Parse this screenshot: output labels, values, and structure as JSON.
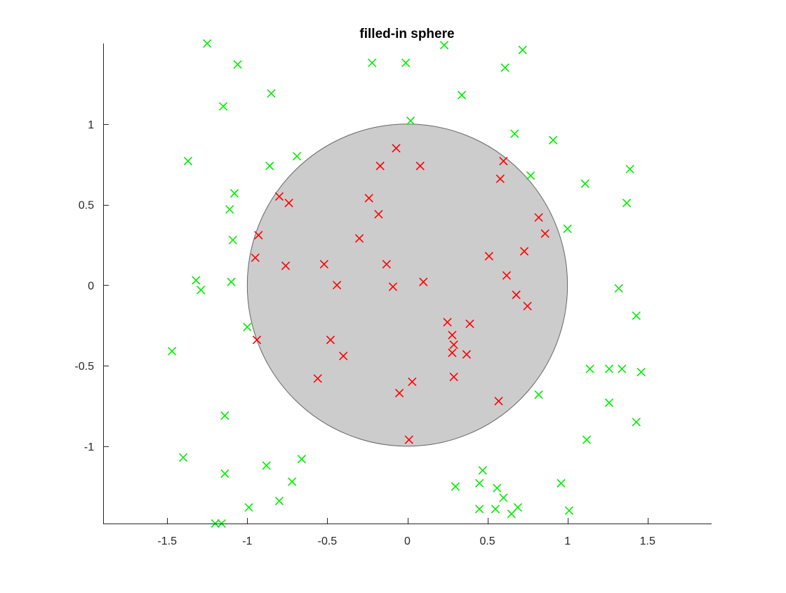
{
  "chart_data": {
    "type": "scatter",
    "title": "filled-in sphere",
    "xlabel": "",
    "ylabel": "",
    "xlim": [
      -1.9,
      1.9
    ],
    "ylim": [
      -1.48,
      1.5
    ],
    "xticks": [
      -1.5,
      -1,
      -0.5,
      0,
      0.5,
      1,
      1.5
    ],
    "xtick_labels": [
      "-1.5",
      "-1",
      "-0.5",
      "0",
      "0.5",
      "1",
      "1.5"
    ],
    "yticks": [
      -1,
      -0.5,
      0,
      0.5,
      1
    ],
    "ytick_labels": [
      "-1",
      "-0.5",
      "0",
      "0.5",
      "1"
    ],
    "grid": false,
    "box": false,
    "circle": {
      "center": [
        0,
        0
      ],
      "radius": 1,
      "fill": "#cccccc",
      "edge": "#666666"
    },
    "series": [
      {
        "marker": "x",
        "color": "#ff0000",
        "points": [
          [
            -0.07,
            0.85
          ],
          [
            0.08,
            0.74
          ],
          [
            -0.17,
            0.74
          ],
          [
            0.6,
            0.77
          ],
          [
            0.58,
            0.66
          ],
          [
            -0.24,
            0.54
          ],
          [
            -0.18,
            0.44
          ],
          [
            -0.8,
            0.55
          ],
          [
            -0.74,
            0.51
          ],
          [
            -0.93,
            0.31
          ],
          [
            -0.3,
            0.29
          ],
          [
            0.82,
            0.42
          ],
          [
            0.86,
            0.32
          ],
          [
            0.51,
            0.18
          ],
          [
            0.73,
            0.21
          ],
          [
            -0.95,
            0.17
          ],
          [
            -0.76,
            0.12
          ],
          [
            -0.52,
            0.13
          ],
          [
            -0.13,
            0.13
          ],
          [
            0.62,
            0.06
          ],
          [
            -0.44,
            0.0
          ],
          [
            -0.09,
            -0.01
          ],
          [
            0.1,
            0.02
          ],
          [
            0.68,
            -0.06
          ],
          [
            0.75,
            -0.13
          ],
          [
            0.25,
            -0.23
          ],
          [
            0.39,
            -0.24
          ],
          [
            0.28,
            -0.31
          ],
          [
            0.29,
            -0.37
          ],
          [
            -0.48,
            -0.34
          ],
          [
            -0.94,
            -0.34
          ],
          [
            0.28,
            -0.42
          ],
          [
            0.37,
            -0.43
          ],
          [
            -0.4,
            -0.44
          ],
          [
            0.29,
            -0.57
          ],
          [
            -0.56,
            -0.58
          ],
          [
            0.03,
            -0.6
          ],
          [
            -0.05,
            -0.67
          ],
          [
            0.57,
            -0.72
          ],
          [
            0.01,
            -0.96
          ]
        ]
      },
      {
        "marker": "x",
        "color": "#00ee00",
        "points": [
          [
            -1.25,
            1.5
          ],
          [
            0.23,
            1.49
          ],
          [
            0.72,
            1.46
          ],
          [
            -1.06,
            1.37
          ],
          [
            -0.22,
            1.38
          ],
          [
            -0.01,
            1.38
          ],
          [
            0.61,
            1.35
          ],
          [
            -0.85,
            1.19
          ],
          [
            0.34,
            1.18
          ],
          [
            -1.15,
            1.11
          ],
          [
            0.02,
            1.02
          ],
          [
            0.67,
            0.94
          ],
          [
            0.91,
            0.9
          ],
          [
            -1.37,
            0.77
          ],
          [
            -0.69,
            0.8
          ],
          [
            -0.86,
            0.74
          ],
          [
            1.39,
            0.72
          ],
          [
            0.77,
            0.68
          ],
          [
            1.11,
            0.63
          ],
          [
            -1.08,
            0.57
          ],
          [
            1.37,
            0.51
          ],
          [
            -1.11,
            0.47
          ],
          [
            1.0,
            0.35
          ],
          [
            -1.09,
            0.28
          ],
          [
            -1.32,
            0.03
          ],
          [
            -1.29,
            -0.03
          ],
          [
            -1.1,
            0.02
          ],
          [
            1.32,
            -0.02
          ],
          [
            1.43,
            -0.19
          ],
          [
            -1.0,
            -0.26
          ],
          [
            -1.47,
            -0.41
          ],
          [
            1.14,
            -0.52
          ],
          [
            1.26,
            -0.52
          ],
          [
            1.34,
            -0.52
          ],
          [
            1.46,
            -0.54
          ],
          [
            0.82,
            -0.68
          ],
          [
            1.26,
            -0.73
          ],
          [
            -1.14,
            -0.81
          ],
          [
            1.43,
            -0.85
          ],
          [
            1.12,
            -0.96
          ],
          [
            -1.4,
            -1.07
          ],
          [
            -0.66,
            -1.08
          ],
          [
            -0.88,
            -1.12
          ],
          [
            0.47,
            -1.15
          ],
          [
            -1.14,
            -1.17
          ],
          [
            -0.72,
            -1.22
          ],
          [
            0.45,
            -1.23
          ],
          [
            0.96,
            -1.23
          ],
          [
            0.3,
            -1.25
          ],
          [
            0.56,
            -1.26
          ],
          [
            0.6,
            -1.32
          ],
          [
            -0.8,
            -1.34
          ],
          [
            -0.99,
            -1.38
          ],
          [
            0.45,
            -1.39
          ],
          [
            0.55,
            -1.39
          ],
          [
            0.69,
            -1.38
          ],
          [
            1.01,
            -1.4
          ],
          [
            0.65,
            -1.42
          ],
          [
            -1.2,
            -1.48
          ],
          [
            -1.16,
            -1.48
          ]
        ]
      }
    ]
  }
}
